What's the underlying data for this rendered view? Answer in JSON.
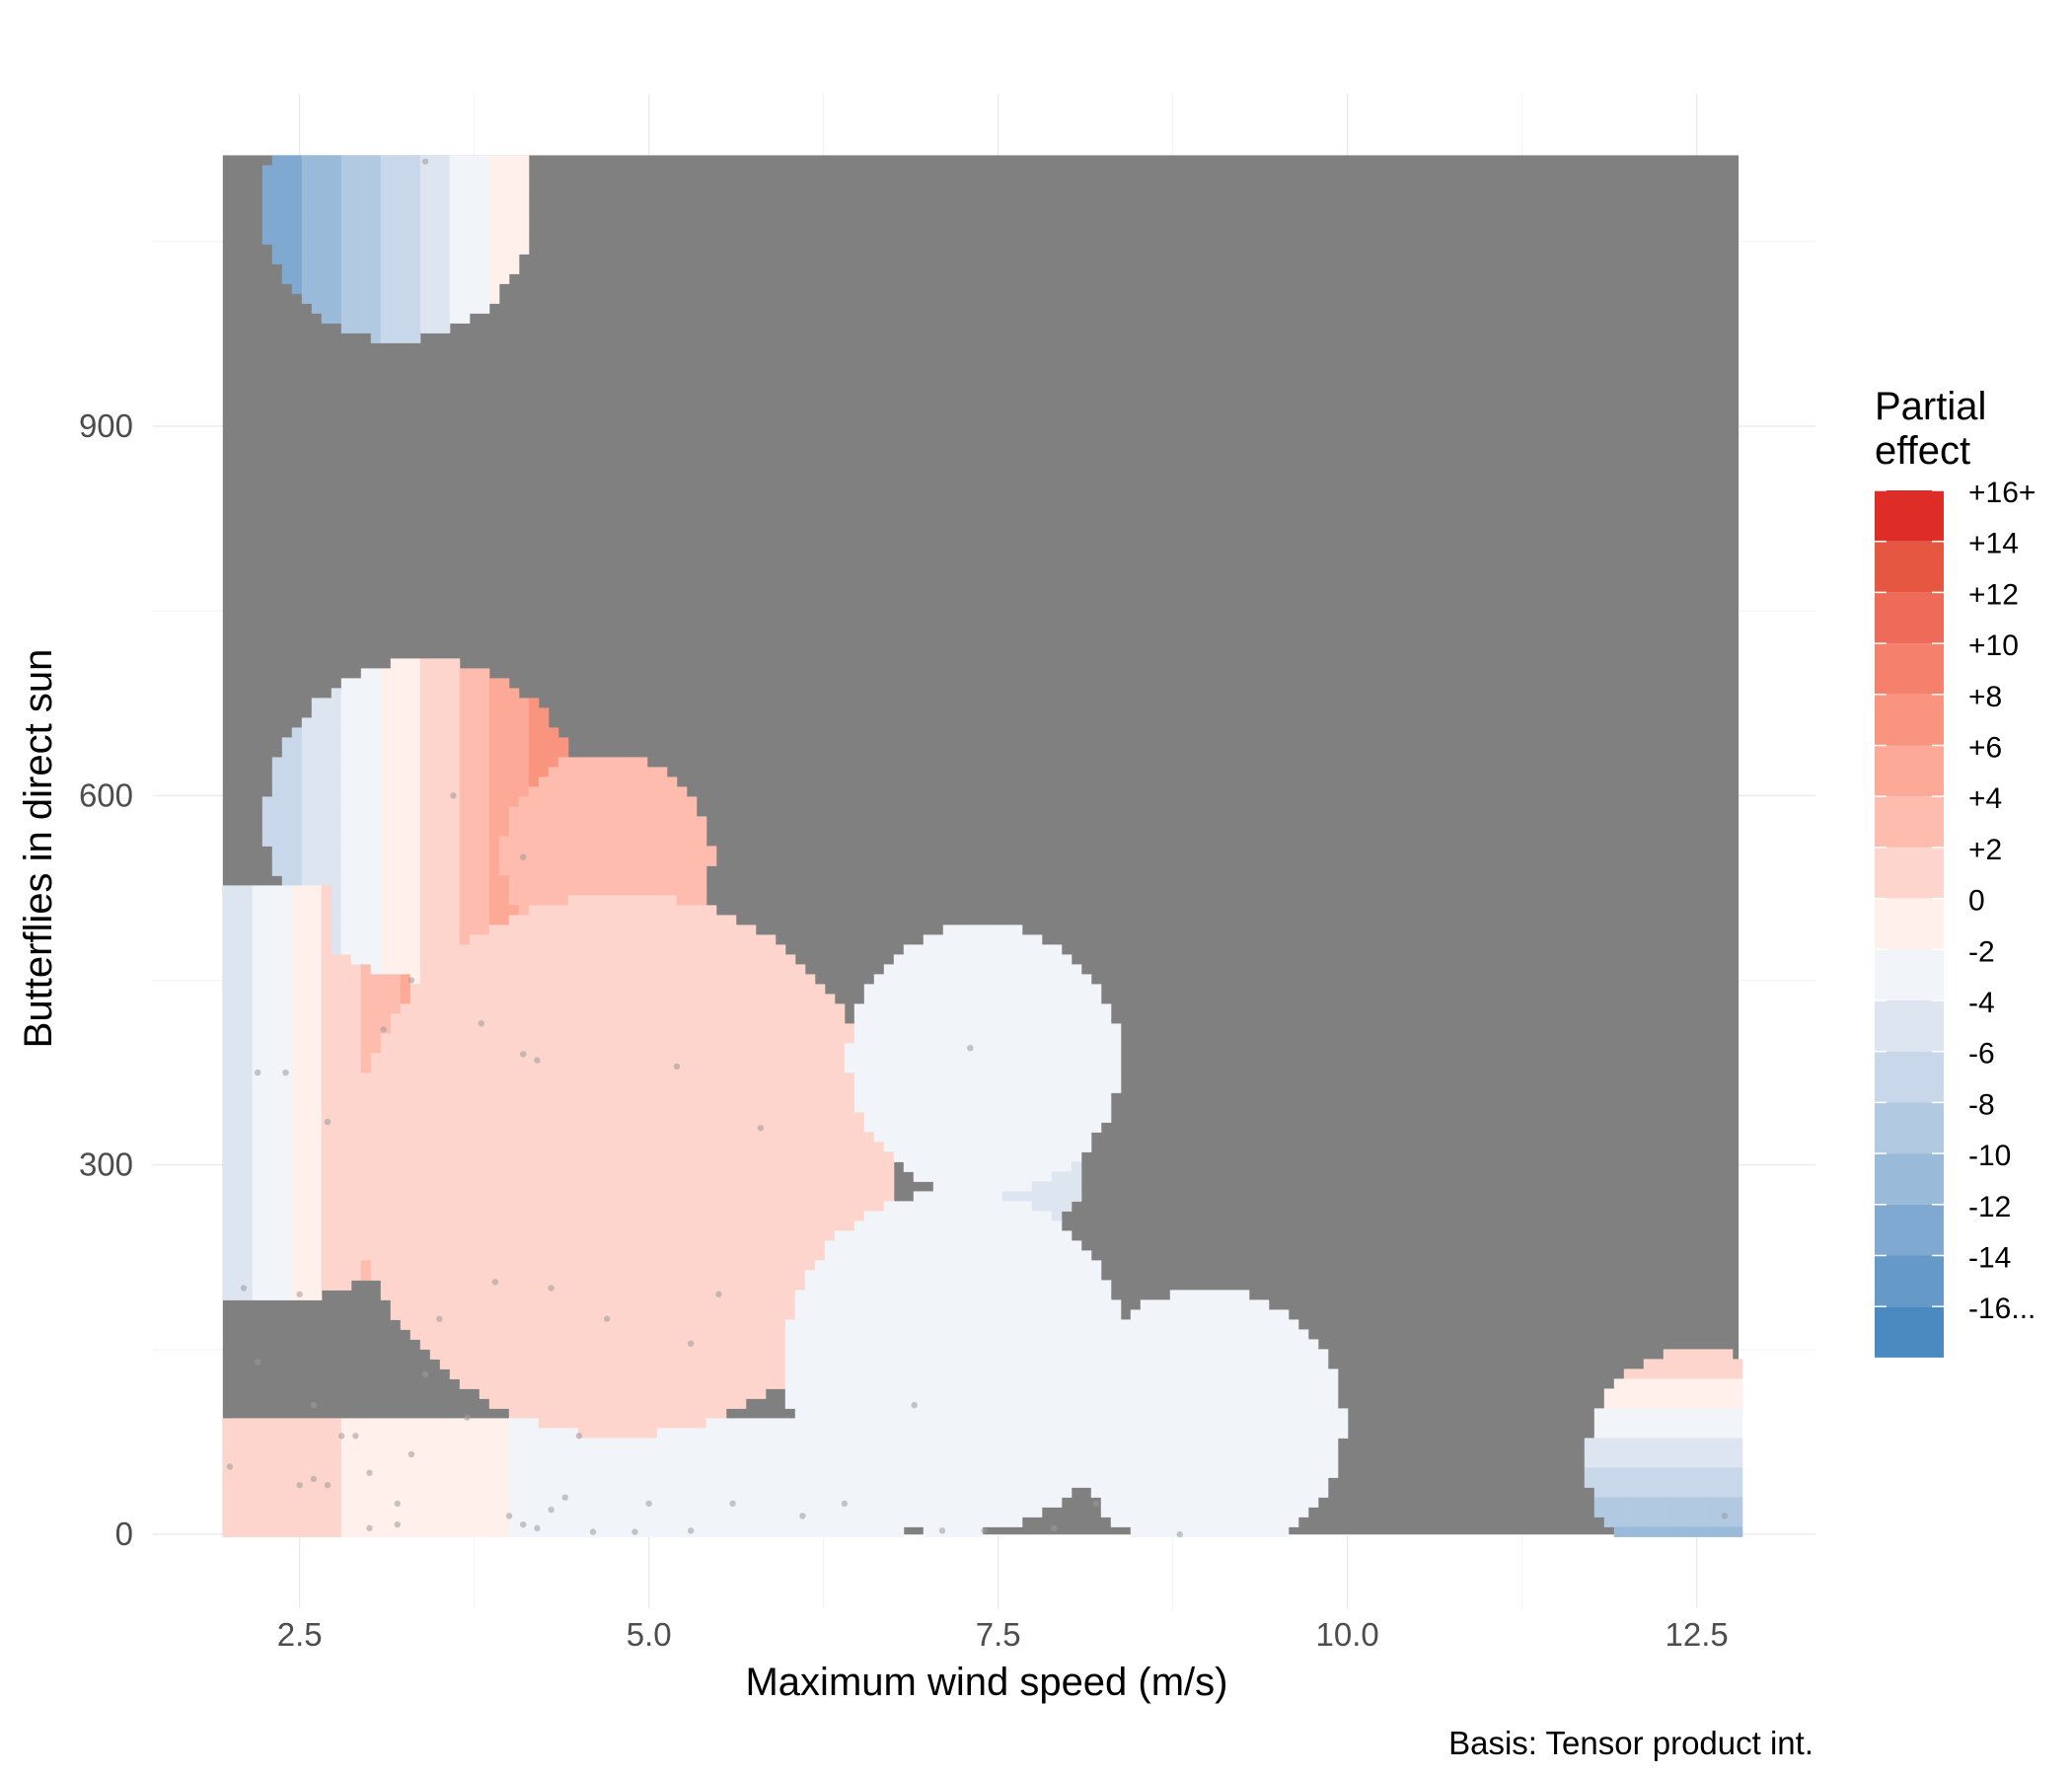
{
  "chart_data": {
    "type": "heatmap",
    "xlabel": "Maximum wind speed (m/s)",
    "ylabel": "Butterflies in direct sun",
    "caption": "Basis: Tensor product int.",
    "x_ticks": [
      "2.5",
      "5.0",
      "7.5",
      "10.0",
      "12.5"
    ],
    "x_tick_values": [
      2.5,
      5.0,
      7.5,
      10.0,
      12.5
    ],
    "y_ticks": [
      "0",
      "300",
      "600",
      "900"
    ],
    "y_tick_values": [
      0,
      300,
      600,
      900
    ],
    "xlim": [
      1.45,
      13.35
    ],
    "ylim": [
      -60,
      1170
    ],
    "data_region": {
      "x": [
        1.95,
        12.8
      ],
      "y": [
        0,
        1120
      ]
    },
    "outside_color": "#808080",
    "grid": true,
    "legend": {
      "title": [
        "Partial",
        "effect"
      ],
      "position": "right",
      "bins": [
        {
          "label": "+16+",
          "color": "#de2d26"
        },
        {
          "label": "+14",
          "color": "#e55741"
        },
        {
          "label": "+12",
          "color": "#ee6a59"
        },
        {
          "label": "+10",
          "color": "#f5806c"
        },
        {
          "label": "+8",
          "color": "#f9957e"
        },
        {
          "label": "+6",
          "color": "#fca997"
        },
        {
          "label": "+4",
          "color": "#fdbcae"
        },
        {
          "label": "+2",
          "color": "#fdd5cc"
        },
        {
          "label": "0",
          "color": "#fff0ec"
        },
        {
          "label": "-2",
          "color": "#f1f4f9"
        },
        {
          "label": "-4",
          "color": "#dde6f0"
        },
        {
          "label": "-6",
          "color": "#c8d8ea"
        },
        {
          "label": "-8",
          "color": "#b1c9e1"
        },
        {
          "label": "-10",
          "color": "#9abad9"
        },
        {
          "label": "-12",
          "color": "#80a9d1"
        },
        {
          "label": "-14",
          "color": "#6499c8"
        },
        {
          "label": "-16...",
          "color": "#4a8ac0"
        }
      ]
    },
    "effect_field": {
      "description_units": "partial effect",
      "lobes": [
        {
          "cx": 3.2,
          "cy": 1080,
          "r": 110,
          "xgrad": 5.5,
          "base": -6
        },
        {
          "cx": 3.4,
          "cy": 580,
          "r": 130,
          "xgrad": 6.0,
          "base": -4
        },
        {
          "cx": 4.7,
          "cy": 550,
          "r": 85,
          "value": 5
        },
        {
          "cx": 2.3,
          "cy": 360,
          "r": 170,
          "xgrad": 6.5,
          "base": -8
        },
        {
          "cx": 4.8,
          "cy": 300,
          "r": 220,
          "value": 3
        },
        {
          "cx": 7.4,
          "cy": 385,
          "r": 110,
          "value": -1
        },
        {
          "cx": 7.6,
          "cy": 300,
          "r": 60,
          "value": -3
        },
        {
          "cx": 7.2,
          "cy": 140,
          "r": 140,
          "value": -1
        },
        {
          "cx": 9.0,
          "cy": 90,
          "r": 110,
          "value": -1
        },
        {
          "cx": 12.5,
          "cy": 60,
          "r": 90,
          "ygrad": true
        }
      ]
    },
    "points": [
      [
        2.0,
        55
      ],
      [
        2.2,
        375
      ],
      [
        2.1,
        200
      ],
      [
        2.2,
        140
      ],
      [
        2.4,
        375
      ],
      [
        2.6,
        105
      ],
      [
        2.7,
        335
      ],
      [
        2.5,
        195
      ],
      [
        2.5,
        40
      ],
      [
        2.6,
        45
      ],
      [
        2.7,
        40
      ],
      [
        2.8,
        80
      ],
      [
        2.9,
        80
      ],
      [
        3.0,
        50
      ],
      [
        3.1,
        410
      ],
      [
        3.2,
        25
      ],
      [
        3.3,
        65
      ],
      [
        3.3,
        450
      ],
      [
        3.4,
        130
      ],
      [
        3.5,
        175
      ],
      [
        3.6,
        600
      ],
      [
        3.7,
        95
      ],
      [
        3.8,
        415
      ],
      [
        3.9,
        205
      ],
      [
        4.1,
        550
      ],
      [
        4.1,
        390
      ],
      [
        4.2,
        385
      ],
      [
        4.3,
        200
      ],
      [
        4.0,
        15
      ],
      [
        4.1,
        8
      ],
      [
        4.2,
        5
      ],
      [
        4.3,
        20
      ],
      [
        4.4,
        30
      ],
      [
        4.5,
        80
      ],
      [
        4.7,
        175
      ],
      [
        4.9,
        2
      ],
      [
        5.2,
        380
      ],
      [
        5.3,
        155
      ],
      [
        5.5,
        195
      ],
      [
        5.6,
        25
      ],
      [
        5.8,
        330
      ],
      [
        6.1,
        15
      ],
      [
        6.4,
        25
      ],
      [
        6.9,
        105
      ],
      [
        7.1,
        3
      ],
      [
        7.3,
        395
      ],
      [
        7.4,
        3
      ],
      [
        7.9,
        5
      ],
      [
        8.2,
        25
      ],
      [
        8.8,
        0
      ],
      [
        12.7,
        15
      ],
      [
        3.4,
        1115
      ],
      [
        3.0,
        5
      ],
      [
        3.2,
        8
      ],
      [
        4.6,
        2
      ],
      [
        5.0,
        25
      ],
      [
        5.3,
        3
      ]
    ]
  }
}
